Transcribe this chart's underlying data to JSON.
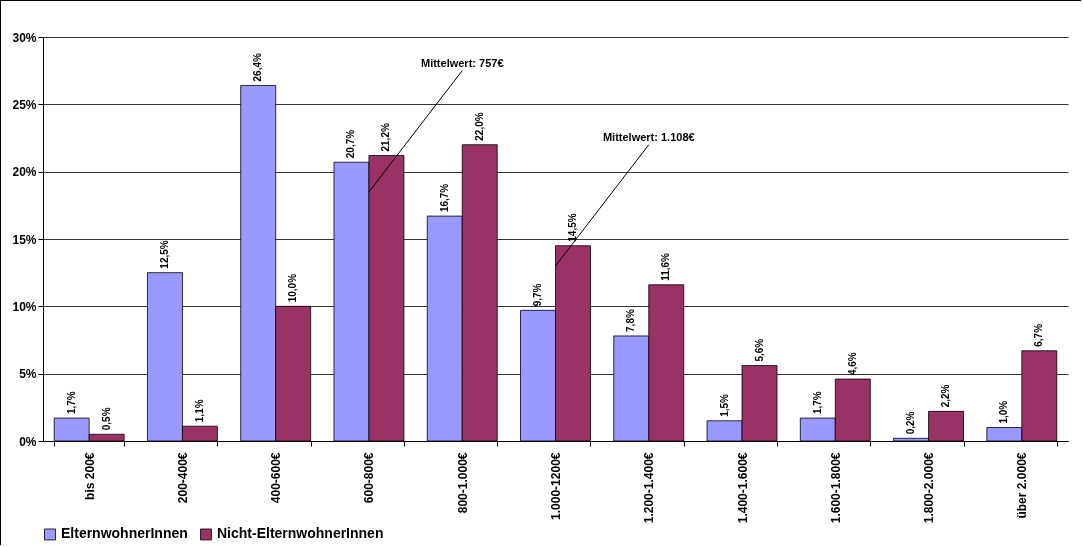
{
  "chart_data": {
    "type": "bar",
    "categories": [
      "bis 200€",
      "200-400€",
      "400-600€",
      "600-800€",
      "800-1.000€",
      "1.000-1200€",
      "1.200-1.400€",
      "1.400-1.600€",
      "1.600-1.800€",
      "1.800-2.000€",
      "über 2.000€"
    ],
    "series": [
      {
        "name": "ElternwohnerInnen",
        "color": "#9999ff",
        "values": [
          1.7,
          12.5,
          26.4,
          20.7,
          16.7,
          9.7,
          7.8,
          1.5,
          1.7,
          0.2,
          1.0
        ],
        "value_labels": [
          "1,7%",
          "12,5%",
          "26,4%",
          "20,7%",
          "16,7%",
          "9,7%",
          "7,8%",
          "1,5%",
          "1,7%",
          "0,2%",
          "1,0%"
        ]
      },
      {
        "name": "Nicht-ElternwohnerInnen",
        "color": "#993366",
        "values": [
          0.5,
          1.1,
          10.0,
          21.2,
          22.0,
          14.5,
          11.6,
          5.6,
          4.6,
          2.2,
          6.7
        ],
        "value_labels": [
          "0,5%",
          "1,1%",
          "10,0%",
          "21,2%",
          "22,0%",
          "14,5%",
          "11,6%",
          "5,6%",
          "4,6%",
          "2,2%",
          "6,7%"
        ]
      }
    ],
    "ylim": [
      0,
      30
    ],
    "yticks": [
      {
        "value": 0,
        "label": "0%"
      },
      {
        "value": 5,
        "label": "5%"
      },
      {
        "value": 10,
        "label": "10%"
      },
      {
        "value": 15,
        "label": "15%"
      },
      {
        "value": 20,
        "label": "20%"
      },
      {
        "value": 25,
        "label": "25%"
      },
      {
        "value": 30,
        "label": "30%"
      }
    ],
    "grid": "y",
    "legend": "bottom",
    "annotations": [
      {
        "text": "Mittelwert: 757€",
        "x": "600-800€",
        "y": 18.5
      },
      {
        "text": "Mittelwert: 1.108€",
        "x": "1.000-1200€",
        "y": 13
      }
    ]
  }
}
